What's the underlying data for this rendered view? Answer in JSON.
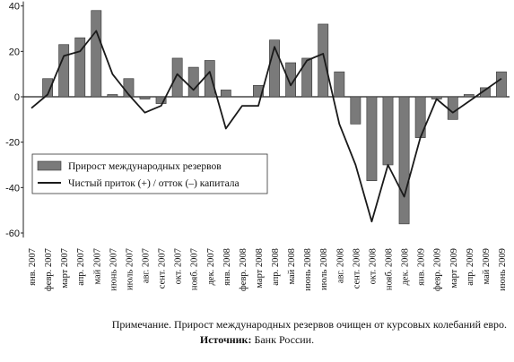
{
  "chart_data": {
    "type": "bar",
    "categories": [
      "янв. 2007",
      "февр. 2007",
      "март 2007",
      "апр. 2007",
      "май 2007",
      "июнь 2007",
      "июль 2007",
      "авг. 2007",
      "сент. 2007",
      "окт. 2007",
      "нояб. 2007",
      "дек. 2007",
      "янв. 2008",
      "февр. 2008",
      "март 2008",
      "апр. 2008",
      "май 2008",
      "июнь 2008",
      "июль 2008",
      "авг. 2008",
      "сент. 2008",
      "окт. 2008",
      "нояб. 2008",
      "дек. 2008",
      "янв. 2009",
      "февр. 2009",
      "март 2009",
      "апр. 2009",
      "май 2009",
      "июнь 2009"
    ],
    "series": [
      {
        "name": "Прирост международных резервов",
        "type": "bar",
        "values": [
          0,
          8,
          23,
          26,
          38,
          1,
          8,
          -1,
          -3,
          17,
          13,
          16,
          3,
          0,
          5,
          25,
          15,
          17,
          32,
          11,
          -12,
          -37,
          -30,
          -56,
          -18,
          -1,
          -10,
          1,
          4,
          11
        ]
      },
      {
        "name": "Чистый приток (+) / отток (–) капитала",
        "type": "line",
        "values": [
          -5,
          1,
          18,
          20,
          29,
          10,
          1,
          -7,
          -4,
          10,
          3,
          11,
          -14,
          -4,
          -4,
          22,
          5,
          16,
          19,
          -12,
          -30,
          -55,
          -30,
          -44,
          -18,
          -1,
          -7,
          -2,
          3,
          8
        ]
      }
    ],
    "yticks": [
      40,
      20,
      0,
      -20,
      -40,
      -60
    ],
    "ylim": [
      -62,
      42
    ],
    "legend": "bottom-left"
  },
  "note": {
    "text": "Примечание. Прирост международных резервов очищен от курсовых колебаний евро.",
    "source_label": "Источник:",
    "source_value": "Банк России."
  },
  "colors": {
    "bar": "#7a7a7a",
    "line": "#1a1a1a",
    "axis": "#222222"
  }
}
